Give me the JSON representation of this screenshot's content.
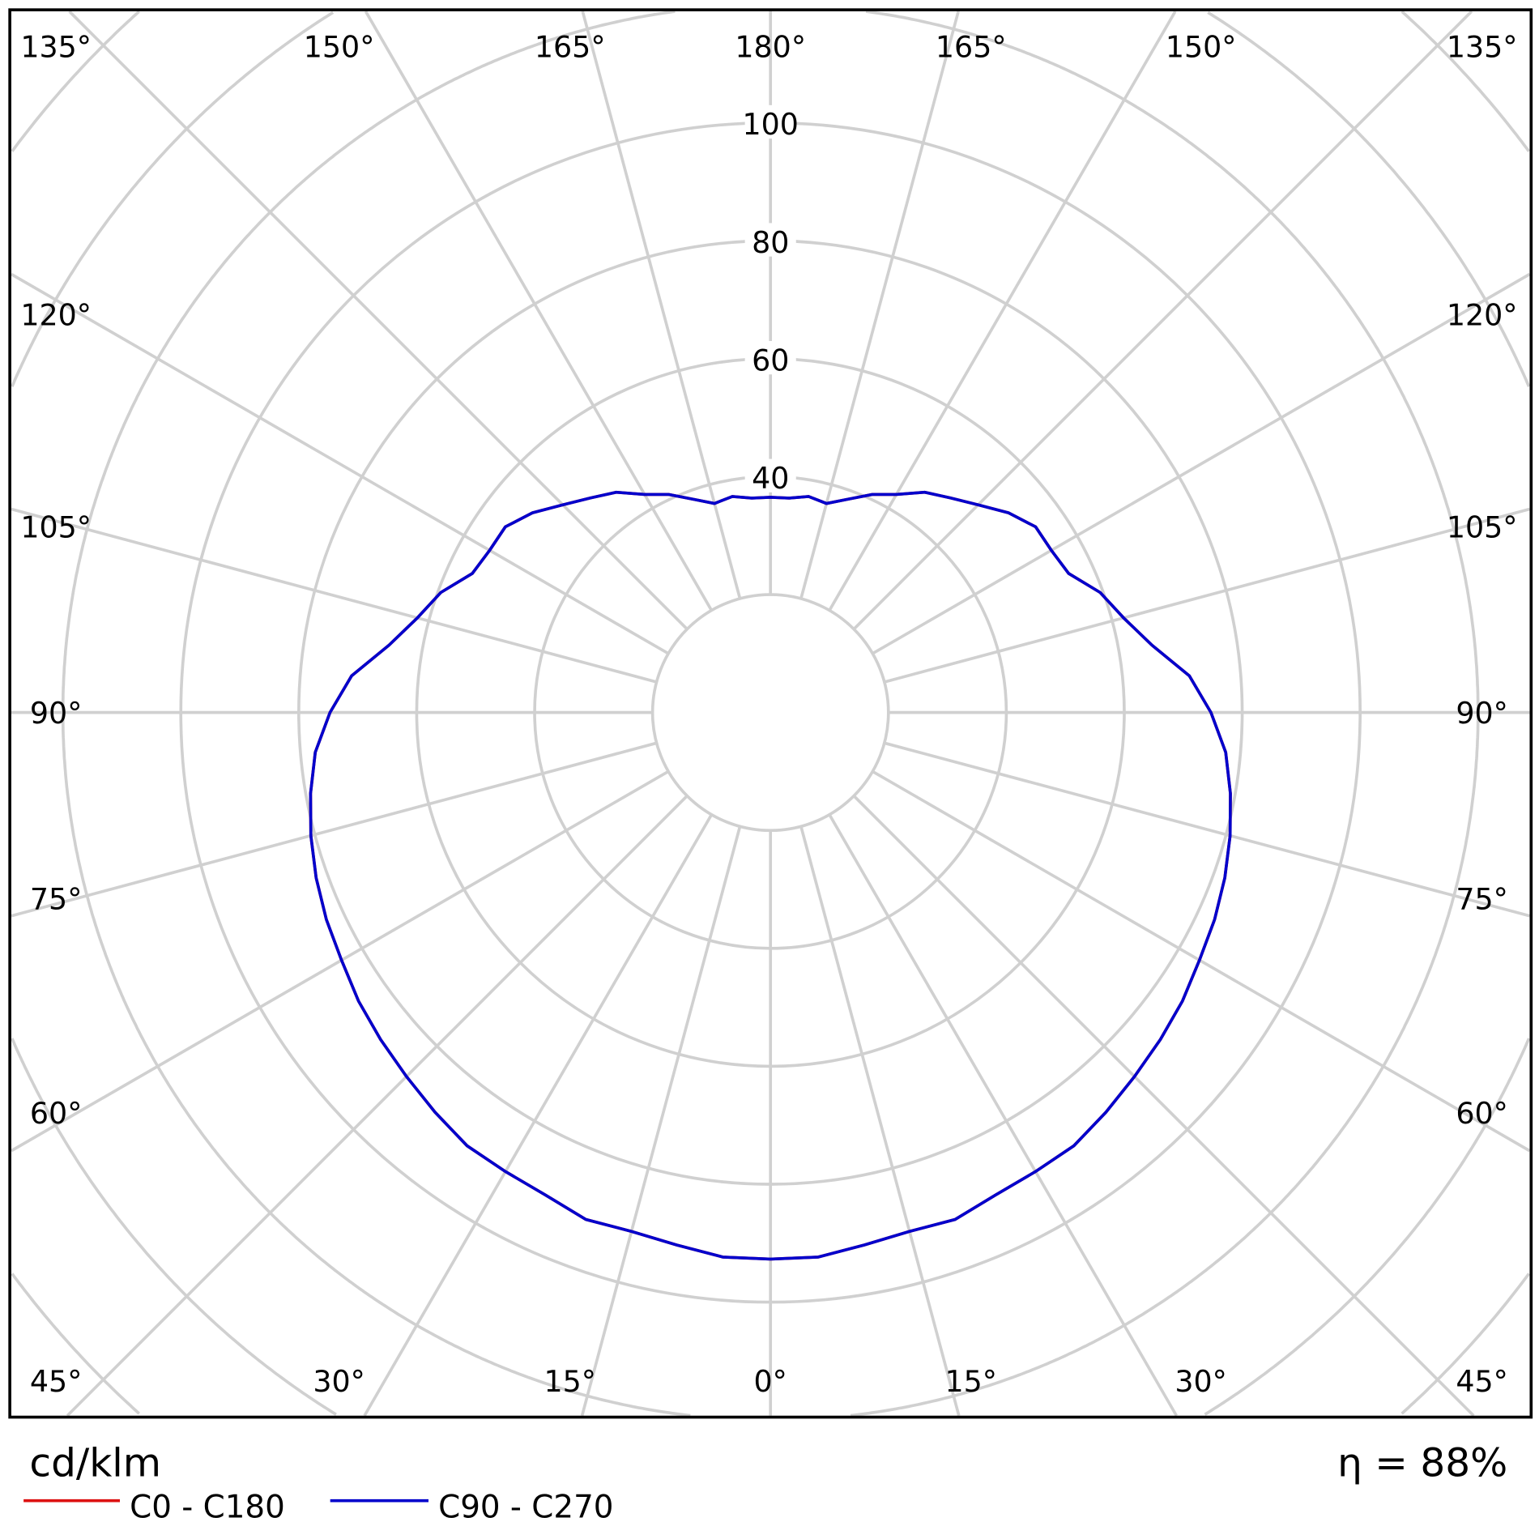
{
  "chart_data": {
    "type": "polar",
    "unit": "cd/klm",
    "efficiency": "η = 88%",
    "radial_ticks": [
      40,
      60,
      80,
      100
    ],
    "radial_rings": [
      20,
      40,
      60,
      80,
      100,
      120,
      140,
      160,
      180
    ],
    "angle_step": 15,
    "angle_labels": {
      "bottom": [
        "45°",
        "30°",
        "15°",
        "0°",
        "15°",
        "30°",
        "45°"
      ],
      "sides": [
        "60°",
        "75°",
        "90°",
        "105°",
        "120°"
      ],
      "top": [
        "135°",
        "150°",
        "165°",
        "180°",
        "165°",
        "150°",
        "135°"
      ]
    },
    "grid": true,
    "legend_placement": "bottom-left",
    "angles": [
      0,
      5,
      10,
      15,
      20,
      25,
      30,
      35,
      40,
      45,
      50,
      55,
      60,
      65,
      70,
      75,
      80,
      85,
      90,
      95,
      100,
      105,
      110,
      115,
      120,
      125,
      130,
      135,
      140,
      145,
      150,
      155,
      160,
      165,
      170,
      175,
      180
    ],
    "series": [
      {
        "name": "C0 - C180",
        "color": "#dd1111",
        "values": [
          92.7,
          92.7,
          91.7,
          91.1,
          91.5,
          90.3,
          89.9,
          89.7,
          88.5,
          87.3,
          86.3,
          85.3,
          84.0,
          83.1,
          82.0,
          80.7,
          79.2,
          77.5,
          74.7,
          71.3,
          65.7,
          62.0,
          59.5,
          55.8,
          55.0,
          54.9,
          52.7,
          49.8,
          47.5,
          45.6,
          42.7,
          40.8,
          38.5,
          36.7,
          37.2,
          36.5,
          36.5
        ]
      },
      {
        "name": "C90 - C270",
        "color": "#0000cc",
        "values": [
          92.7,
          92.7,
          91.7,
          91.1,
          91.5,
          90.3,
          89.9,
          89.7,
          88.5,
          87.3,
          86.3,
          85.3,
          84.0,
          83.1,
          82.0,
          80.7,
          79.2,
          77.5,
          74.7,
          71.3,
          65.7,
          62.0,
          59.5,
          55.8,
          55.0,
          54.9,
          52.7,
          49.8,
          47.5,
          45.6,
          42.7,
          40.8,
          38.5,
          36.7,
          37.2,
          36.5,
          36.5
        ]
      }
    ]
  }
}
